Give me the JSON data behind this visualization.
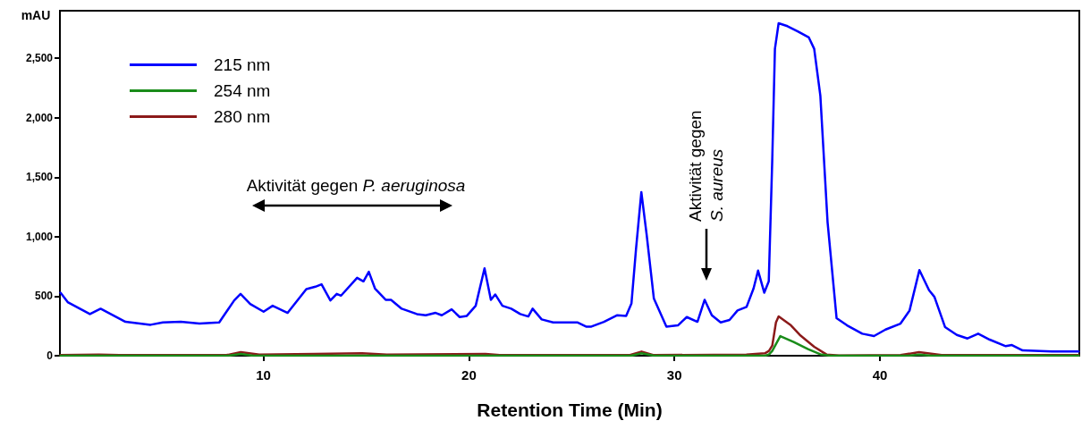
{
  "chart_data": {
    "type": "line",
    "xlabel": "Retention Time (Min)",
    "ylabel": "mAU",
    "xlim": [
      0.1,
      49.7
    ],
    "xticks": [
      10,
      20,
      30,
      40
    ],
    "ylim": [
      0,
      2900
    ],
    "yticks": [
      0,
      500,
      {
        "value": 1000,
        "label": "1,000"
      },
      {
        "value": 1500,
        "label": "1,500"
      },
      {
        "value": 2000,
        "label": "2,000"
      },
      {
        "value": 2500,
        "label": "2,500"
      }
    ],
    "grid": false,
    "legend": "top left",
    "marker": "none",
    "line_style": "solid",
    "annotations": [
      "Aktivität gegen P. aeruginosa",
      "Aktivität gegen S. aureus"
    ],
    "series": [
      {
        "name": "215 nm",
        "color": "#0000ff",
        "x": [
          0.13,
          0.48,
          1.56,
          2.08,
          3.29,
          4.51,
          5.11,
          5.98,
          6.89,
          7.85,
          8.58,
          8.89,
          9.36,
          10.01,
          10.45,
          11.18,
          12.09,
          12.53,
          12.83,
          13.26,
          13.57,
          13.78,
          14.56,
          14.87,
          15.13,
          15.43,
          15.95,
          16.21,
          16.73,
          17.47,
          17.9,
          18.38,
          18.68,
          19.16,
          19.55,
          19.9,
          20.33,
          20.76,
          21.07,
          21.28,
          21.63,
          22.06,
          22.5,
          22.89,
          23.1,
          23.54,
          24.1,
          25.27,
          25.7,
          25.96,
          26.57,
          27.22,
          27.65,
          27.91,
          28.13,
          28.39,
          28.65,
          29.0,
          29.61,
          30.17,
          30.6,
          31.12,
          31.47,
          31.82,
          32.25,
          32.68,
          33.07,
          33.51,
          33.85,
          34.07,
          34.37,
          34.59,
          34.76,
          34.89,
          35.07,
          35.5,
          36.02,
          36.54,
          36.8,
          37.1,
          37.45,
          37.89,
          38.4,
          39.14,
          39.71,
          40.27,
          41.0,
          41.44,
          41.92,
          42.39,
          42.65,
          43.17,
          43.74,
          44.26,
          44.78,
          45.34,
          46.12,
          46.42,
          46.94,
          48.37,
          49.67
        ],
        "values": [
          530,
          450,
          350,
          395,
          285,
          260,
          280,
          285,
          270,
          280,
          465,
          520,
          435,
          370,
          420,
          360,
          560,
          580,
          600,
          465,
          520,
          505,
          655,
          625,
          705,
          565,
          470,
          470,
          395,
          350,
          340,
          360,
          340,
          390,
          325,
          335,
          420,
          735,
          470,
          515,
          420,
          395,
          350,
          330,
          395,
          305,
          280,
          280,
          245,
          245,
          285,
          340,
          335,
          440,
          895,
          1375,
          1015,
          480,
          245,
          255,
          325,
          285,
          470,
          340,
          280,
          300,
          380,
          410,
          565,
          715,
          530,
          625,
          1650,
          2580,
          2795,
          2770,
          2725,
          2675,
          2580,
          2185,
          1125,
          315,
          255,
          185,
          165,
          220,
          270,
          380,
          720,
          550,
          495,
          240,
          175,
          145,
          185,
          135,
          80,
          90,
          45,
          35,
          35
        ]
      },
      {
        "name": "254 nm",
        "color": "#1a8c1a",
        "x": [
          0.13,
          8.3,
          8.9,
          9.5,
          27.9,
          28.4,
          29.0,
          34.4,
          34.6,
          34.76,
          35.15,
          35.8,
          36.5,
          37.1,
          37.6,
          41.4,
          41.9,
          42.5,
          49.67
        ],
        "values": [
          0,
          0,
          15,
          0,
          0,
          20,
          0,
          0,
          10,
          40,
          165,
          115,
          55,
          12,
          0,
          0,
          10,
          0,
          0
        ]
      },
      {
        "name": "280 nm",
        "color": "#8b1a1a",
        "x": [
          0.13,
          2.0,
          3.0,
          8.2,
          8.9,
          9.8,
          12.5,
          14.8,
          16.0,
          20.8,
          21.5,
          27.8,
          28.4,
          29.0,
          33.5,
          34.4,
          34.6,
          34.76,
          34.94,
          35.07,
          35.67,
          36.1,
          36.8,
          37.4,
          38.0,
          41.0,
          41.9,
          43.0,
          49.67
        ],
        "values": [
          5,
          10,
          5,
          5,
          30,
          10,
          15,
          20,
          10,
          15,
          5,
          5,
          35,
          5,
          10,
          20,
          40,
          85,
          280,
          330,
          255,
          175,
          75,
          10,
          2,
          5,
          30,
          5,
          5
        ]
      }
    ]
  }
}
